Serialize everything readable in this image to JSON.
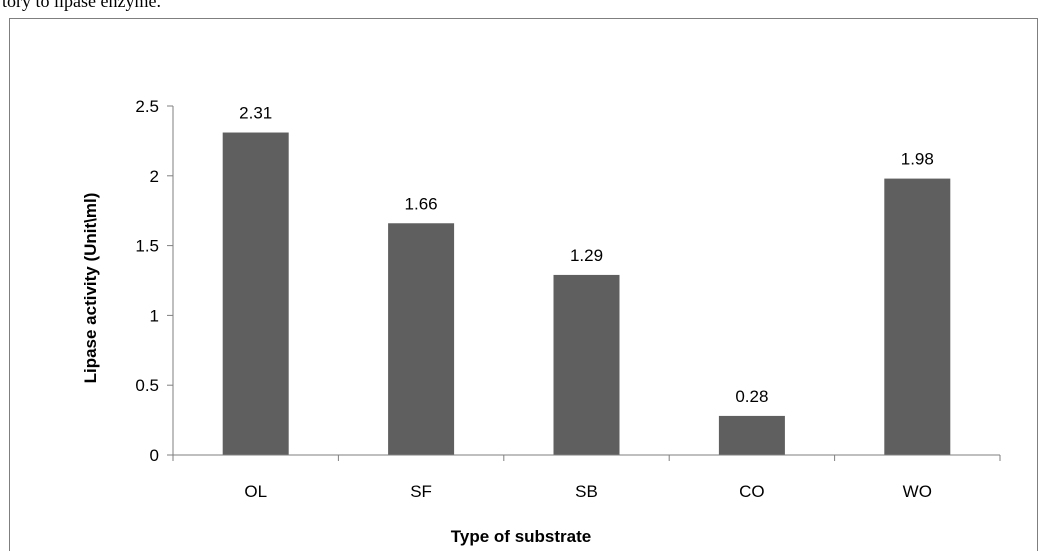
{
  "page": {
    "caption_fragment": "tory to lipase enzyme."
  },
  "colors": {
    "bar": "#5f5f5f",
    "axis": "#7f7f7f",
    "frame": "#7f7f7f",
    "text": "#000000"
  },
  "chart_data": {
    "type": "bar",
    "categories": [
      "OL",
      "SF",
      "SB",
      "CO",
      "WO"
    ],
    "values": [
      2.31,
      1.66,
      1.29,
      0.28,
      1.98
    ],
    "data_labels": [
      "2.31",
      "1.66",
      "1.29",
      "0.28",
      "1.98"
    ],
    "title": "",
    "xlabel": "Type of substrate",
    "ylabel": "Lipase activity (Unit\\ml)",
    "ylim": [
      0,
      2.5
    ],
    "yticks": [
      0,
      0.5,
      1,
      1.5,
      2,
      2.5
    ],
    "ytick_labels": [
      "0",
      "0.5",
      "1",
      "1.5",
      "2",
      "2.5"
    ],
    "grid": false,
    "legend": "none"
  }
}
